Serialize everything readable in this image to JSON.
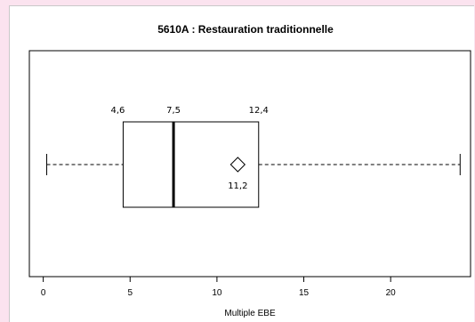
{
  "chart_data": {
    "type": "boxplot",
    "title": "5610A : Restauration traditionnelle",
    "xlabel": "Multiple EBE",
    "ylabel": "",
    "xlim": [
      -0.8,
      24.6
    ],
    "xticks": [
      0,
      5,
      10,
      15,
      20
    ],
    "tick_labels": [
      "0",
      "5",
      "10",
      "15",
      "20"
    ],
    "whisker_low": 0.2,
    "q1": 4.6,
    "median": 7.5,
    "q3": 12.4,
    "whisker_high": 24.0,
    "mean": 11.2,
    "labels": {
      "q1": "4,6",
      "median": "7,5",
      "q3": "12,4",
      "mean": "11,2"
    },
    "grid": false,
    "legend": "none"
  }
}
